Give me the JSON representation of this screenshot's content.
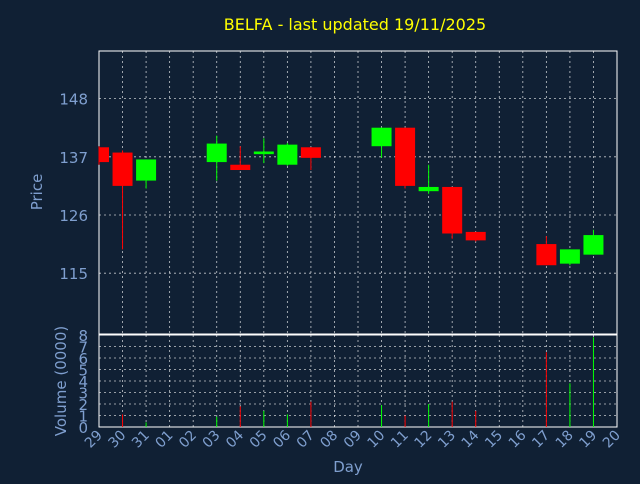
{
  "title": "BELFA - last updated 19/11/2025",
  "colors": {
    "background": "#102034",
    "title": "#ffff00",
    "axis_text": "#7f9fcf",
    "frame": "#ffffff",
    "grid": "#ffffff",
    "up": "#00ff00",
    "down": "#ff0000"
  },
  "chart_data": [
    {
      "type": "candlestick",
      "ylabel": "Price",
      "yticks": [
        115,
        126,
        137,
        148
      ],
      "ylim": [
        103.5,
        157
      ],
      "x": [
        "29",
        "30",
        "31",
        "01",
        "02",
        "03",
        "04",
        "05",
        "06",
        "07",
        "08",
        "09",
        "10",
        "11",
        "12",
        "13",
        "14",
        "15",
        "16",
        "17",
        "18",
        "19",
        "20"
      ],
      "grid": true,
      "candles": [
        {
          "day": "29",
          "open": 138.8,
          "high": 139.0,
          "low": 135.5,
          "close": 136.0
        },
        {
          "day": "30",
          "open": 137.8,
          "high": 138.2,
          "low": 119.5,
          "close": 131.5
        },
        {
          "day": "31",
          "open": 132.5,
          "high": 136.5,
          "low": 131.0,
          "close": 136.5
        },
        {
          "day": "03",
          "open": 136.0,
          "high": 141.0,
          "low": 132.5,
          "close": 139.5
        },
        {
          "day": "04",
          "open": 135.5,
          "high": 139.0,
          "low": 134.5,
          "close": 134.5
        },
        {
          "day": "05",
          "open": 137.5,
          "high": 140.5,
          "low": 135.8,
          "close": 138.0
        },
        {
          "day": "06",
          "open": 135.5,
          "high": 139.6,
          "low": 135.3,
          "close": 139.3
        },
        {
          "day": "07",
          "open": 138.8,
          "high": 138.8,
          "low": 134.5,
          "close": 136.8
        },
        {
          "day": "10",
          "open": 139.0,
          "high": 142.5,
          "low": 136.8,
          "close": 142.5
        },
        {
          "day": "11",
          "open": 142.5,
          "high": 142.5,
          "low": 131.0,
          "close": 131.5
        },
        {
          "day": "12",
          "open": 130.5,
          "high": 135.5,
          "low": 130.0,
          "close": 131.3
        },
        {
          "day": "13",
          "open": 131.3,
          "high": 131.3,
          "low": 121.5,
          "close": 122.5
        },
        {
          "day": "14",
          "open": 122.8,
          "high": 122.8,
          "low": 121.0,
          "close": 121.2
        },
        {
          "day": "17",
          "open": 120.5,
          "high": 122.0,
          "low": 116.5,
          "close": 116.5
        },
        {
          "day": "18",
          "open": 116.8,
          "high": 119.5,
          "low": 116.5,
          "close": 119.5
        },
        {
          "day": "19",
          "open": 118.5,
          "high": 123.2,
          "low": 118.5,
          "close": 122.2
        }
      ]
    },
    {
      "type": "bar",
      "ylabel": "Volume (0000)",
      "xlabel": "Day",
      "yticks": [
        0,
        1,
        2,
        3,
        4,
        5,
        6,
        7,
        8
      ],
      "ylim": [
        0,
        8
      ],
      "x": [
        "29",
        "30",
        "31",
        "01",
        "02",
        "03",
        "04",
        "05",
        "06",
        "07",
        "08",
        "09",
        "10",
        "11",
        "12",
        "13",
        "14",
        "15",
        "16",
        "17",
        "18",
        "19",
        "20"
      ],
      "grid": true,
      "bars": [
        {
          "day": "30",
          "value": 1.1,
          "dir": "down"
        },
        {
          "day": "31",
          "value": 0.4,
          "dir": "up"
        },
        {
          "day": "03",
          "value": 0.9,
          "dir": "up"
        },
        {
          "day": "04",
          "value": 1.8,
          "dir": "down"
        },
        {
          "day": "05",
          "value": 1.4,
          "dir": "up"
        },
        {
          "day": "06",
          "value": 1.1,
          "dir": "up"
        },
        {
          "day": "07",
          "value": 2.2,
          "dir": "down"
        },
        {
          "day": "10",
          "value": 1.9,
          "dir": "up"
        },
        {
          "day": "11",
          "value": 1.0,
          "dir": "down"
        },
        {
          "day": "12",
          "value": 2.0,
          "dir": "up"
        },
        {
          "day": "13",
          "value": 2.2,
          "dir": "down"
        },
        {
          "day": "14",
          "value": 1.4,
          "dir": "down"
        },
        {
          "day": "17",
          "value": 6.5,
          "dir": "down"
        },
        {
          "day": "18",
          "value": 3.8,
          "dir": "up"
        },
        {
          "day": "19",
          "value": 7.8,
          "dir": "up"
        }
      ]
    }
  ]
}
